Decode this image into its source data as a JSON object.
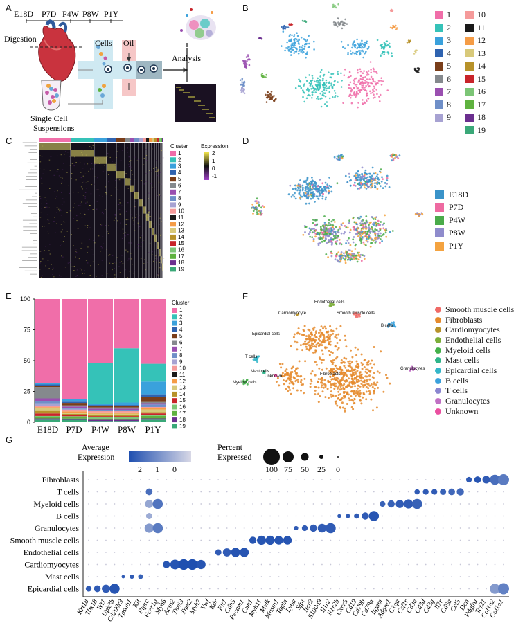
{
  "panels": {
    "A": "A",
    "B": "B",
    "C": "C",
    "D": "D",
    "E": "E",
    "F": "F",
    "G": "G"
  },
  "panelA": {
    "timepoints": [
      "E18D",
      "P7D",
      "P4W",
      "P8W",
      "P1Y"
    ],
    "digestion": "Digestion",
    "cells": "Cells",
    "oil": "Oil",
    "analysis": "Analysis",
    "single_cell": "Single Cell",
    "suspensions": "Suspensions"
  },
  "clusters": [
    "1",
    "2",
    "3",
    "4",
    "5",
    "6",
    "7",
    "8",
    "9",
    "10",
    "11",
    "12",
    "13",
    "14",
    "15",
    "16",
    "17",
    "18",
    "19"
  ],
  "cluster_colors": [
    "#f06ea9",
    "#35c2b8",
    "#3aa1dc",
    "#2f63b0",
    "#7a3e1a",
    "#85898d",
    "#9a4fb0",
    "#6f8fc8",
    "#a7a2d2",
    "#f59a9a",
    "#1a1a1a",
    "#f59c46",
    "#d8c97a",
    "#b7922a",
    "#c8242a",
    "#7cc576",
    "#5fb23f",
    "#6b2f8f",
    "#3aa878"
  ],
  "panelC": {
    "legend_title": "Cluster",
    "expr_title": "Expression",
    "expr_ticks": [
      "2",
      "1",
      "0",
      "-1"
    ]
  },
  "panelD": {
    "samples": [
      "E18D",
      "P7D",
      "P4W",
      "P8W",
      "P1Y"
    ],
    "sample_colors": [
      "#3a93c9",
      "#ee6aa1",
      "#4aab4a",
      "#8f8ccc",
      "#f4a340"
    ]
  },
  "panelF": {
    "cell_types": [
      "Smooth muscle cells",
      "Fibroblasts",
      "Cardiomyocytes",
      "Endothelial cells",
      "Myeloid cells",
      "Mast cells",
      "Epicardial cells",
      "B cells",
      "T cells",
      "Granulocytes",
      "Unknown"
    ],
    "cell_colors": [
      "#f06a66",
      "#e58a2c",
      "#b7922a",
      "#7cae3a",
      "#44b04a",
      "#2fb58a",
      "#35b6c9",
      "#3aa1dc",
      "#8a86d0",
      "#c070c4",
      "#ea4fa0"
    ],
    "map_labels": {
      "endothelial": "Endothelial cells",
      "cardiomyocyte": "Cardiomyocyte",
      "smooth_muscle": "Smooth muscle cells",
      "bcells": "B cells",
      "epicardial": "Epicardial cells",
      "tcells": "T cells",
      "mast": "Mast cells",
      "unknown": "Unknown",
      "myeloid": "Myeloid cells",
      "fibroblasts": "Fibroblasts",
      "granulocytes": "Granulocytes"
    }
  },
  "chart_data": [
    {
      "type": "bar",
      "panel": "E",
      "stacked": true,
      "categories": [
        "E18D",
        "P7D",
        "P4W",
        "P8W",
        "P1Y"
      ],
      "ylim": [
        0,
        100
      ],
      "yticks": [
        "0",
        "25",
        "50",
        "75",
        "100"
      ],
      "legend_title": "Cluster",
      "series": [
        {
          "name": "19",
          "values": [
            2,
            2,
            1,
            1,
            2
          ]
        },
        {
          "name": "18",
          "values": [
            1,
            1,
            1,
            1,
            1
          ]
        },
        {
          "name": "17",
          "values": [
            1,
            1,
            1,
            1,
            2
          ]
        },
        {
          "name": "16",
          "values": [
            1,
            1,
            1,
            1,
            1
          ]
        },
        {
          "name": "15",
          "values": [
            2,
            1,
            1,
            1,
            1
          ]
        },
        {
          "name": "14",
          "values": [
            2,
            1,
            1,
            1,
            1
          ]
        },
        {
          "name": "13",
          "values": [
            2,
            1,
            1,
            1,
            2
          ]
        },
        {
          "name": "12",
          "values": [
            1,
            1,
            1,
            1,
            1
          ]
        },
        {
          "name": "11",
          "values": [
            0,
            0,
            0,
            0,
            0
          ]
        },
        {
          "name": "10",
          "values": [
            1,
            1,
            1,
            1,
            1
          ]
        },
        {
          "name": "9",
          "values": [
            2,
            1,
            0,
            0,
            0
          ]
        },
        {
          "name": "8",
          "values": [
            2,
            1,
            1,
            1,
            2
          ]
        },
        {
          "name": "7",
          "values": [
            2,
            1,
            1,
            1,
            1
          ]
        },
        {
          "name": "6",
          "values": [
            9,
            1,
            1,
            1,
            1
          ]
        },
        {
          "name": "5",
          "values": [
            1,
            2,
            1,
            1,
            4
          ]
        },
        {
          "name": "4",
          "values": [
            1,
            1,
            1,
            1,
            2
          ]
        },
        {
          "name": "3",
          "values": [
            1,
            2,
            1,
            2,
            10
          ]
        },
        {
          "name": "2",
          "values": [
            0,
            0,
            33,
            44,
            14
          ]
        },
        {
          "name": "1",
          "values": [
            67,
            83,
            52,
            40,
            51
          ]
        }
      ]
    },
    {
      "type": "scatter",
      "panel": "G",
      "title_size": "Percent Expressed",
      "title_color": "Average Expression",
      "color_ticks": [
        "2",
        "1",
        "0"
      ],
      "size_ticks": [
        "100",
        "75",
        "50",
        "25",
        "0"
      ],
      "rows": [
        "Fibroblasts",
        "T cells",
        "Myeloid cells",
        "B cells",
        "Granulocytes",
        "Smooth muscle cells",
        "Endothelial cells",
        "Cardiomyocytes",
        "Mast cells",
        "Epicardial cells"
      ],
      "genes": [
        "Krt18",
        "Tbx18",
        "Wt1",
        "Upk3b",
        "Cd200r3",
        "Tpsab1",
        "Kit",
        "Ptprc",
        "Fcer1g",
        "Myh6",
        "Actn2",
        "Tnni3",
        "Tnnt2",
        "Myh7",
        "Vwf",
        "Kdr",
        "Flt1",
        "Cdh5",
        "Pecam1",
        "Cnn1",
        "Myh11",
        "Mylk",
        "Mustn1",
        "Tagln",
        "Ly6g",
        "Sfpi",
        "Itcr2",
        "S100a9",
        "Il1r2",
        "Il1r2b",
        "Cxcr5",
        "Cd19",
        "Cd79b",
        "Cd79a",
        "Itgam",
        "Adgre1",
        "C1qa",
        "Csf1r",
        "Cd3e",
        "Cd3d",
        "Cd3g",
        "Il7r",
        "Cd8a",
        "Ccl5",
        "Dcn",
        "Pdgfra",
        "Tcf21",
        "Col1a2",
        "Col1a1"
      ],
      "points": [
        {
          "row": 0,
          "cols": [
            44,
            45,
            46,
            47,
            48
          ],
          "sizes": [
            0.45,
            0.55,
            0.65,
            0.9,
            1.0
          ],
          "levels": [
            1.8,
            1.9,
            1.8,
            1.5,
            1.3
          ]
        },
        {
          "row": 1,
          "cols": [
            7,
            38,
            39,
            40,
            41,
            42,
            43
          ],
          "sizes": [
            0.55,
            0.4,
            0.45,
            0.45,
            0.5,
            0.55,
            0.6
          ],
          "levels": [
            1.5,
            1.8,
            1.8,
            1.8,
            1.7,
            1.6,
            1.6
          ]
        },
        {
          "row": 2,
          "cols": [
            7,
            8,
            34,
            35,
            36,
            37,
            38
          ],
          "sizes": [
            0.7,
            0.9,
            0.45,
            0.6,
            0.7,
            0.8,
            0.9
          ],
          "levels": [
            0.6,
            1.4,
            1.7,
            1.7,
            1.8,
            1.8,
            1.7
          ]
        },
        {
          "row": 3,
          "cols": [
            7,
            29,
            30,
            31,
            32,
            33
          ],
          "sizes": [
            0.5,
            0.25,
            0.3,
            0.4,
            0.6,
            0.9
          ],
          "levels": [
            0.5,
            1.8,
            1.8,
            1.8,
            1.8,
            1.9
          ]
        },
        {
          "row": 4,
          "cols": [
            7,
            8,
            24,
            25,
            26,
            27,
            28
          ],
          "sizes": [
            0.8,
            0.9,
            0.3,
            0.45,
            0.6,
            0.75,
            0.9
          ],
          "levels": [
            0.8,
            1.3,
            1.8,
            1.8,
            1.8,
            1.8,
            1.8
          ]
        },
        {
          "row": 5,
          "cols": [
            19,
            20,
            21,
            22,
            23
          ],
          "sizes": [
            0.6,
            0.8,
            0.8,
            0.75,
            0.75
          ],
          "levels": [
            1.9,
            1.9,
            1.9,
            1.9,
            1.9
          ]
        },
        {
          "row": 6,
          "cols": [
            15,
            16,
            17,
            18
          ],
          "sizes": [
            0.5,
            0.7,
            0.8,
            0.8
          ],
          "levels": [
            1.8,
            1.8,
            1.9,
            1.9
          ]
        },
        {
          "row": 7,
          "cols": [
            9,
            10,
            11,
            12,
            13
          ],
          "sizes": [
            0.6,
            0.85,
            0.95,
            0.95,
            0.8
          ],
          "levels": [
            1.9,
            1.9,
            2.0,
            2.0,
            1.9
          ]
        },
        {
          "row": 8,
          "cols": [
            4,
            5,
            6
          ],
          "sizes": [
            0.2,
            0.3,
            0.35
          ],
          "levels": [
            1.8,
            1.8,
            1.7
          ]
        },
        {
          "row": 9,
          "cols": [
            0,
            1,
            2,
            3,
            47,
            48
          ],
          "sizes": [
            0.45,
            0.55,
            0.7,
            0.9,
            0.9,
            1.0
          ],
          "levels": [
            1.8,
            1.8,
            1.8,
            1.9,
            0.8,
            1.2
          ]
        }
      ]
    }
  ]
}
